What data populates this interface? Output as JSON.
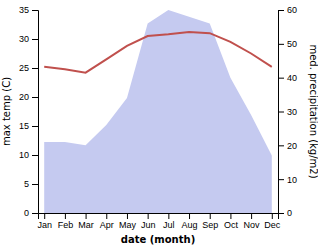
{
  "chart_data": {
    "type": "line",
    "categories": [
      "Jan",
      "Feb",
      "Mar",
      "Apr",
      "May",
      "Jun",
      "Jul",
      "Aug",
      "Sep",
      "Oct",
      "Nov",
      "Dec"
    ],
    "xlabel": "date (month)",
    "ylabel": "max temp (C)",
    "y2label": "med. precipitation (kg/m2)",
    "series": [
      {
        "type": "area",
        "axis": "y2",
        "color": "#c5caf0",
        "values": [
          21,
          21,
          20,
          26,
          34,
          56,
          60,
          58,
          56,
          40,
          29,
          17
        ]
      },
      {
        "type": "line",
        "color": "#c0504d",
        "values": [
          25.2,
          24.8,
          24.2,
          26.5,
          28.8,
          30.5,
          30.8,
          31.2,
          31.0,
          29.5,
          27.5,
          25.2
        ]
      }
    ],
    "ylim": [
      0,
      35
    ],
    "yticks": [
      0,
      5,
      10,
      15,
      20,
      25,
      30,
      35
    ],
    "y2lim": [
      0,
      60
    ],
    "y2ticks": [
      0,
      10,
      20,
      30,
      40,
      50,
      60
    ]
  }
}
